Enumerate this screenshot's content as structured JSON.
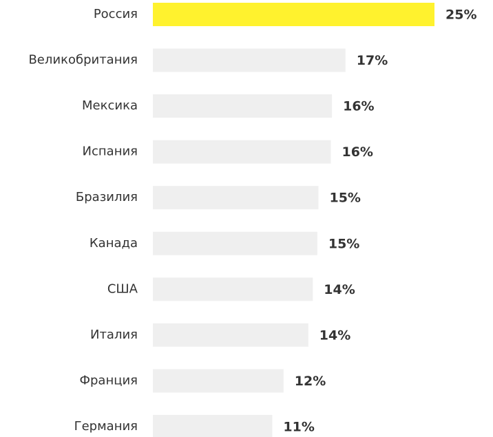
{
  "chart_data": {
    "type": "bar",
    "orientation": "horizontal",
    "categories": [
      "Россия",
      "Великобритания",
      "Мексика",
      "Испания",
      "Бразилия",
      "Канада",
      "США",
      "Италия",
      "Франция",
      "Германия"
    ],
    "values": [
      25,
      17.1,
      15.9,
      15.8,
      14.7,
      14.6,
      14.2,
      13.8,
      11.6,
      10.6
    ],
    "value_labels": [
      "25%",
      "17%",
      "16%",
      "16%",
      "15%",
      "15%",
      "14%",
      "14%",
      "12%",
      "11%"
    ],
    "colors": [
      "#fff22e",
      "#efefef",
      "#efefef",
      "#efefef",
      "#efefef",
      "#efefef",
      "#efefef",
      "#efefef",
      "#efefef",
      "#efefef"
    ],
    "xlim": [
      0,
      25
    ]
  }
}
